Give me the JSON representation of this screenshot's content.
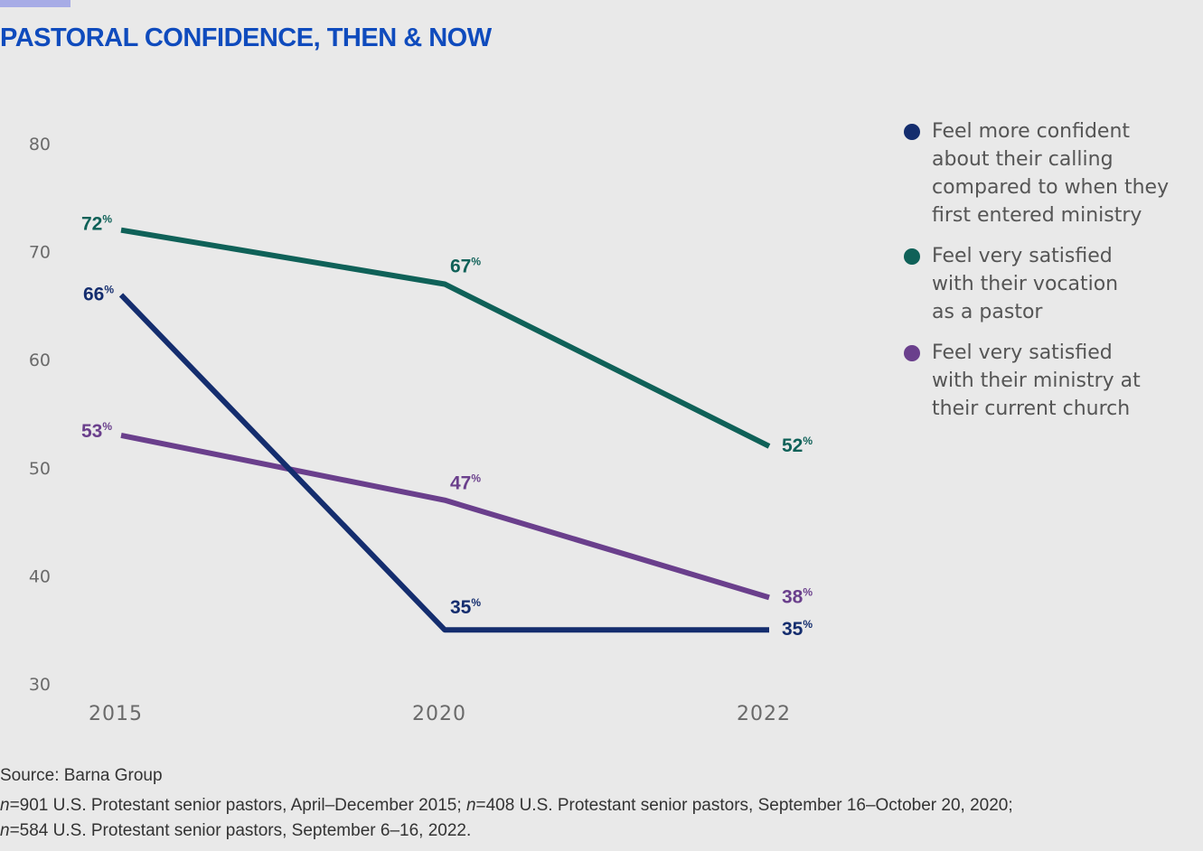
{
  "header": {
    "title": "PASTORAL CONFIDENCE, THEN & NOW"
  },
  "colors": {
    "title": "#0f4bbd",
    "accent_bar": "#a7ace6",
    "background": "#e9e9e9"
  },
  "chart_data": {
    "type": "line",
    "title": "PASTORAL CONFIDENCE, THEN & NOW",
    "xlabel": "",
    "ylabel": "",
    "x": [
      "2015",
      "2020",
      "2022"
    ],
    "ylim": [
      30,
      80
    ],
    "y_ticks": [
      "80",
      "70",
      "60",
      "50",
      "40",
      "30"
    ],
    "grid": false,
    "legend_position": "right",
    "series": [
      {
        "name": "Feel more confident about their calling compared to when they first entered ministry",
        "color": "#142d6e",
        "values": [
          66,
          35,
          35
        ],
        "labels": [
          "66",
          "35",
          "35"
        ]
      },
      {
        "name": "Feel very satisfied with their vocation as a pastor",
        "color": "#0f6158",
        "values": [
          72,
          67,
          52
        ],
        "labels": [
          "72",
          "67",
          "52"
        ]
      },
      {
        "name": "Feel very satisfied with their ministry at their current church",
        "color": "#6a3f8c",
        "values": [
          53,
          47,
          38
        ],
        "labels": [
          "53",
          "47",
          "38"
        ]
      }
    ],
    "value_suffix": "%"
  },
  "legend": {
    "items": [
      {
        "label": "Feel more confident about their calling compared to when they first entered ministry",
        "color": "#142d6e"
      },
      {
        "label": "Feel very satisfied with their vocation as a pastor",
        "color": "#0f6158"
      },
      {
        "label": "Feel very satisfied with their ministry at their current church",
        "color": "#6a3f8c"
      }
    ]
  },
  "footer": {
    "source": "Source: Barna Group",
    "note_parts": [
      {
        "text": "n",
        "italic": true
      },
      {
        "text": "=901 U.S. Protestant senior pastors, April–December 2015; ",
        "italic": false
      },
      {
        "text": "n",
        "italic": true
      },
      {
        "text": "=408 U.S. Protestant senior pastors, September 16–October 20, 2020;",
        "italic": false
      },
      {
        "text": "n",
        "italic": true,
        "break_before": true
      },
      {
        "text": "=584 U.S. Protestant senior pastors, September 6–16, 2022.",
        "italic": false
      }
    ]
  }
}
